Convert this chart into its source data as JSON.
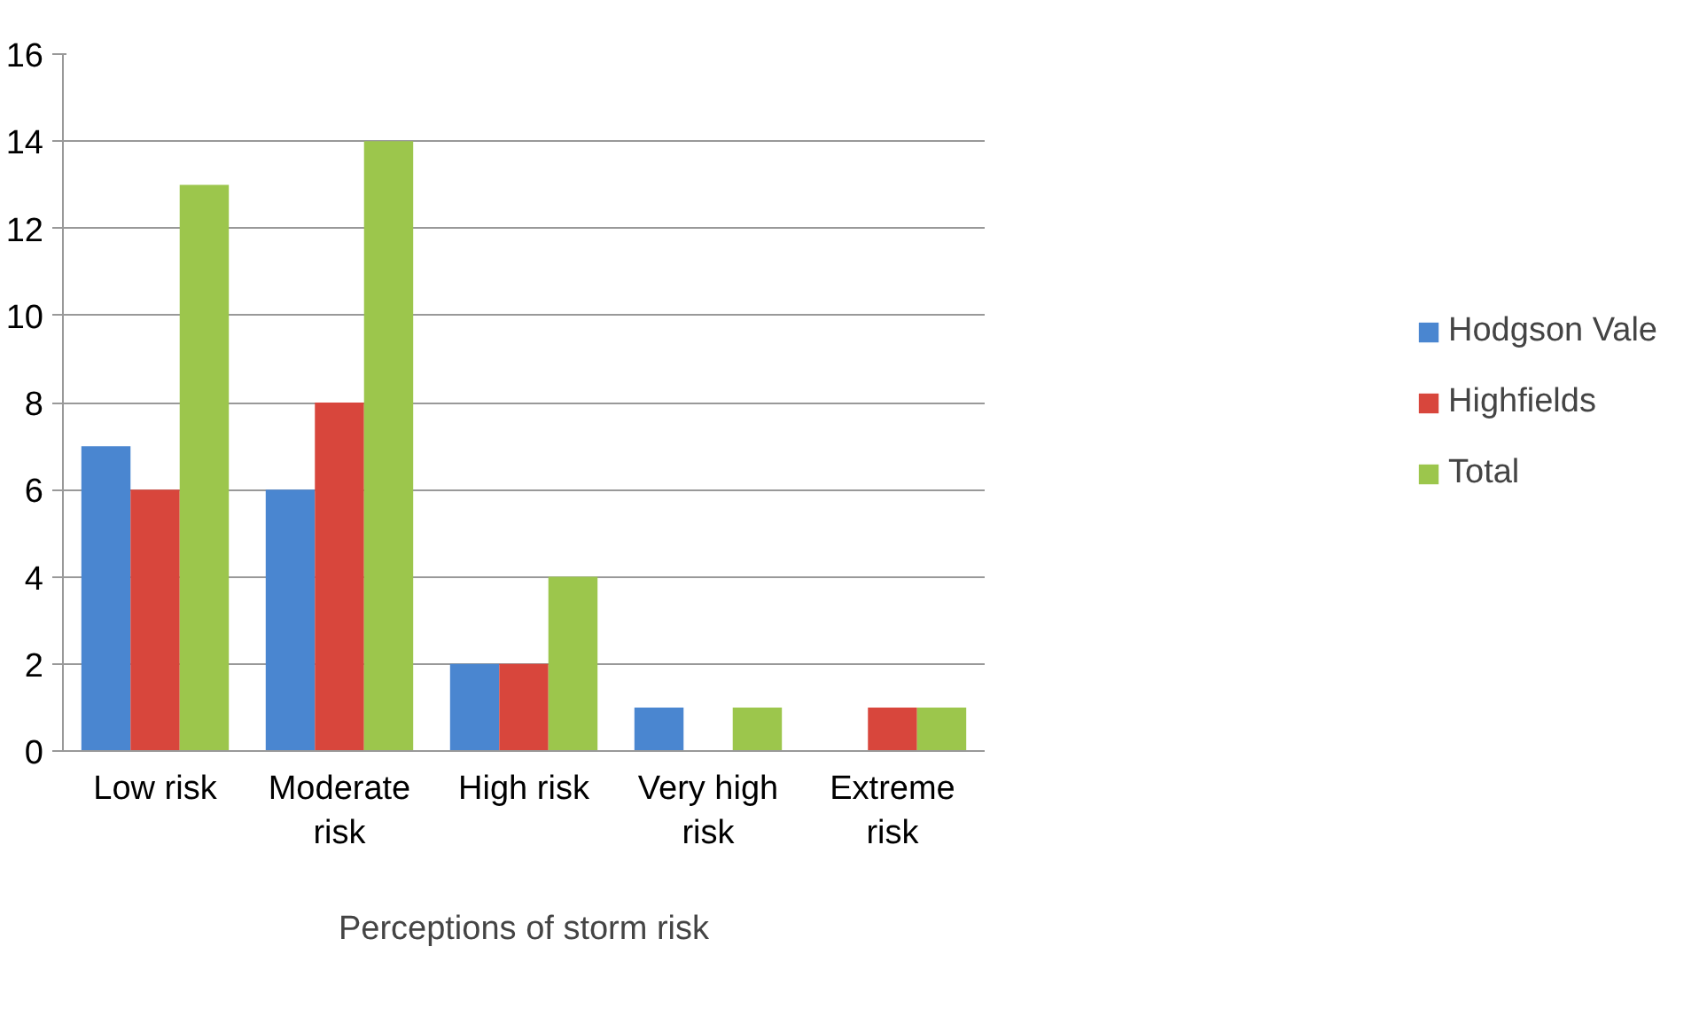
{
  "chart_data": {
    "type": "bar",
    "xlabel": "Perceptions of storm risk",
    "categories": [
      "Low risk",
      "Moderate risk",
      "High risk",
      "Very high risk",
      "Extreme risk"
    ],
    "series": [
      {
        "name": "Hodgson Vale",
        "color": "#4a86d0",
        "values": [
          7,
          6,
          2,
          1,
          0
        ]
      },
      {
        "name": "Highfields",
        "color": "#d8463c",
        "values": [
          6,
          8,
          2,
          0,
          1
        ]
      },
      {
        "name": "Total",
        "color": "#9cc64c",
        "values": [
          13,
          14,
          4,
          1,
          1
        ]
      }
    ],
    "ylim": [
      0,
      16
    ],
    "yticks": [
      0,
      2,
      4,
      6,
      8,
      10,
      12,
      14,
      16
    ],
    "grid": "y",
    "legend": "right"
  }
}
